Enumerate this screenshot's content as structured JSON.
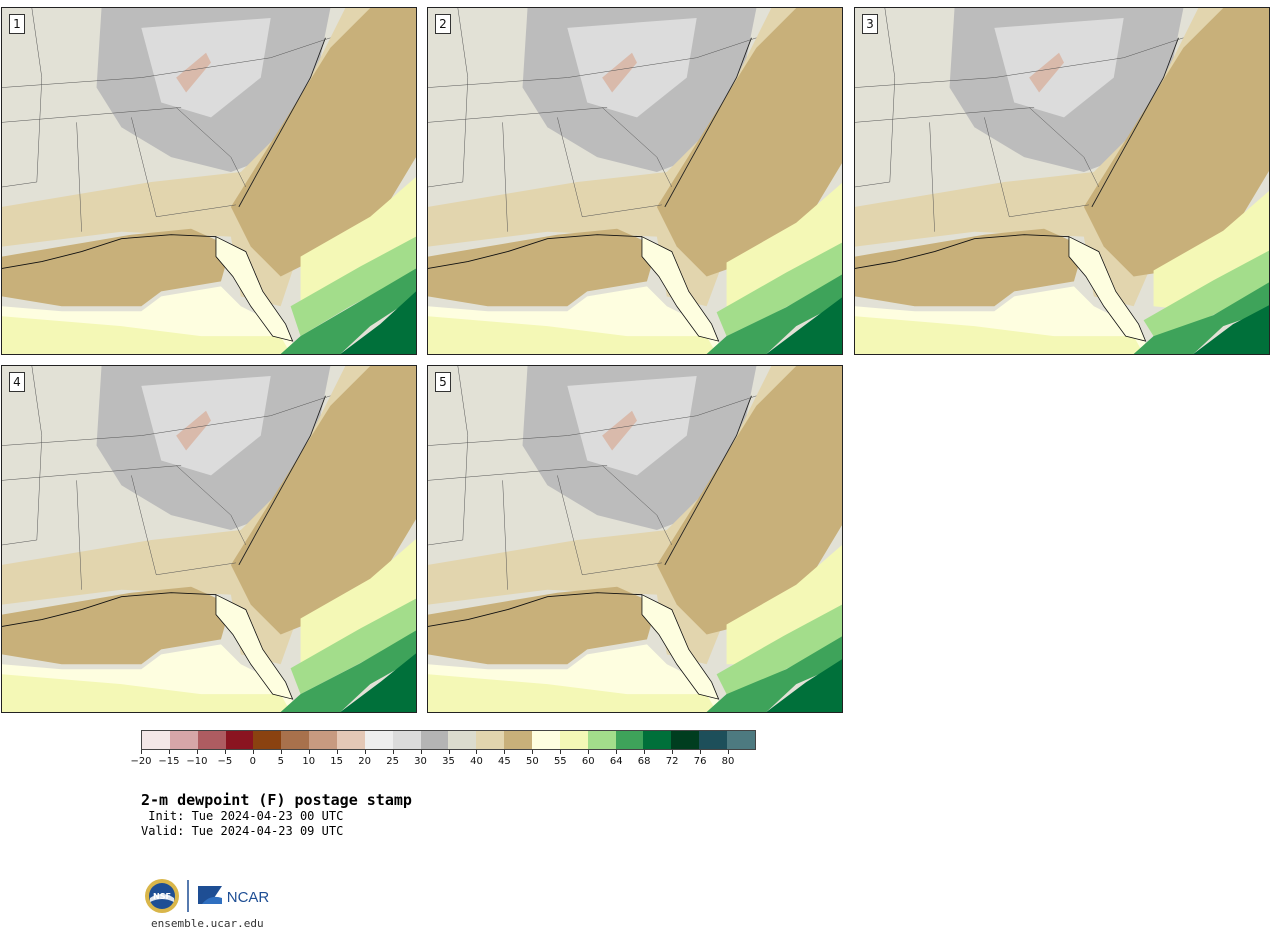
{
  "panels": [
    {
      "label": "1"
    },
    {
      "label": "2"
    },
    {
      "label": "3"
    },
    {
      "label": "4"
    },
    {
      "label": "5"
    }
  ],
  "colorbar": {
    "colors": [
      "#f3e7e7",
      "#d6a6a8",
      "#ae5c61",
      "#8a1420",
      "#8a4210",
      "#a8714c",
      "#c79a80",
      "#e4c8b6",
      "#efefef",
      "#dcdcdc",
      "#b4b4b4",
      "#dcdcce",
      "#e2d5ae",
      "#c8b07a",
      "#fefee0",
      "#f4f8b6",
      "#a3dd8b",
      "#3ea35a",
      "#00703a",
      "#003d1f",
      "#1d4f5a",
      "#4d7a80"
    ],
    "ticks": [
      "−20",
      "−15",
      "−10",
      "−5",
      "0",
      "5",
      "10",
      "15",
      "20",
      "25",
      "30",
      "35",
      "40",
      "45",
      "50",
      "55",
      "60",
      "64",
      "68",
      "72",
      "76",
      "80"
    ]
  },
  "title": "2-m dewpoint (F) postage stamp",
  "init": " Init: Tue 2024-04-23 00 UTC",
  "valid": "Valid: Tue 2024-04-23 09 UTC",
  "logo": {
    "nsf": "NSF",
    "ncar": "NCAR"
  },
  "site": "ensemble.ucar.edu"
}
